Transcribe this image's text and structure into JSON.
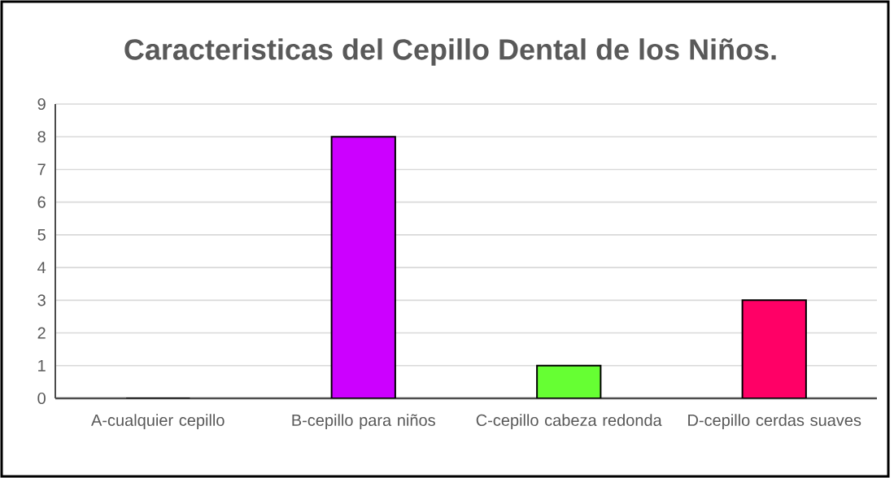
{
  "chart_data": {
    "type": "bar",
    "title": "Caracteristicas del Cepillo Dental de los Niños.",
    "categories": [
      "A-cualquier cepillo",
      "B-cepillo para niños",
      "C-cepillo cabeza redonda",
      "D-cepillo cerdas suaves"
    ],
    "values": [
      0,
      8,
      1,
      3
    ],
    "colors": [
      "#4472c4",
      "#cc00ff",
      "#66ff33",
      "#ff0066"
    ],
    "ylim": [
      0,
      9
    ],
    "yticks": [
      0,
      1,
      2,
      3,
      4,
      5,
      6,
      7,
      8,
      9
    ],
    "grid": "y"
  }
}
